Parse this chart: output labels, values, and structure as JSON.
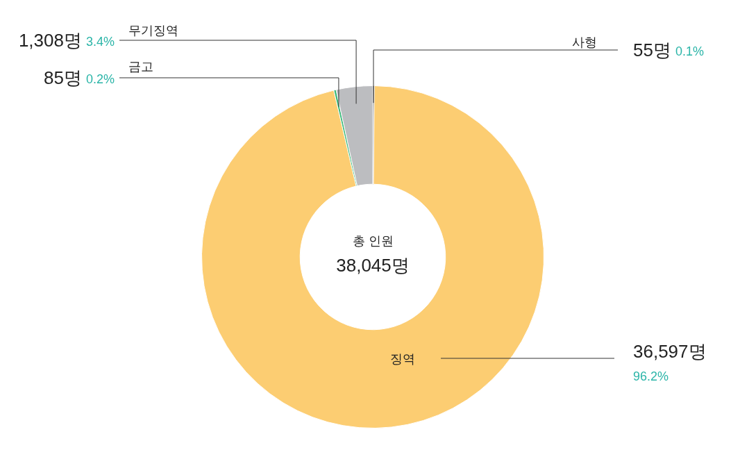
{
  "chart_data": {
    "type": "donut",
    "title": "총 인원",
    "subtitle": "38,045명",
    "categories": [
      "사형",
      "징역",
      "금고",
      "무기징역"
    ],
    "values": [
      55,
      36597,
      85,
      1308
    ],
    "colors": [
      "#1a1a1a",
      "#fccd72",
      "#3cb878",
      "#bcbdc0"
    ],
    "value_labels": [
      "55명 0.1%",
      "36,597명 96.2%",
      "85명 0.2%",
      "1,308명 3.4%"
    ],
    "legend": false
  }
}
